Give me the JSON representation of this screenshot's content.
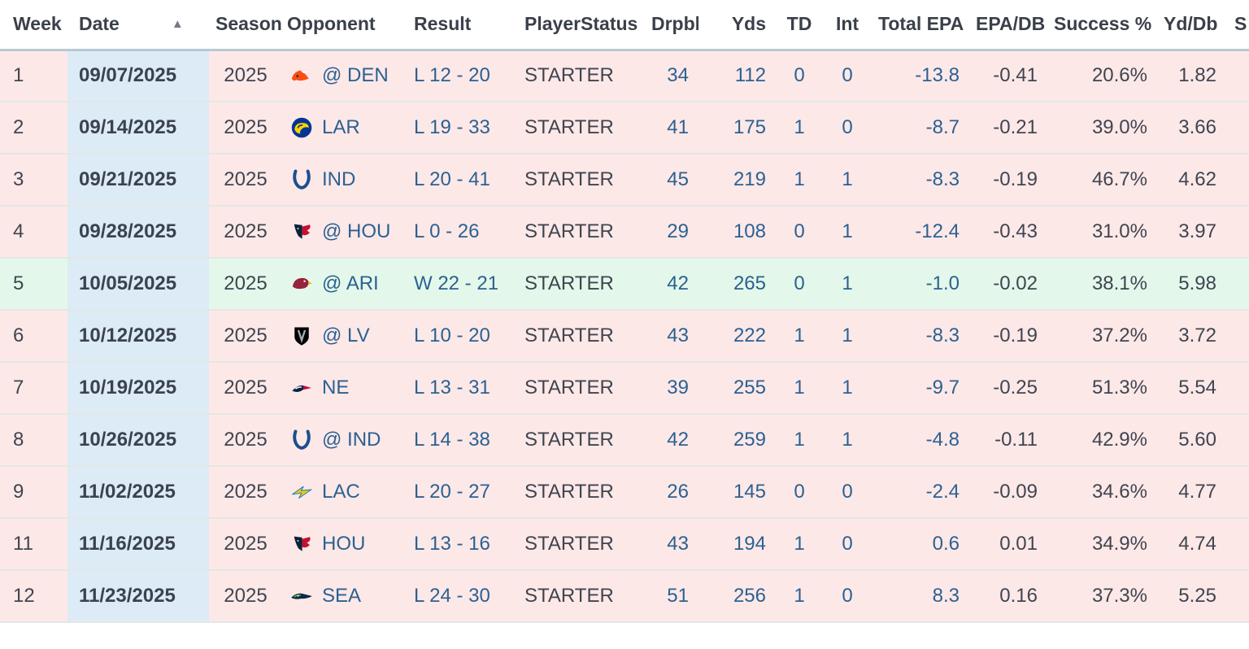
{
  "colors": {
    "loss_row_bg": "#fde8e8",
    "win_row_bg": "#e3f8ea",
    "sorted_column_bg": "#dcebf5",
    "link_blue": "#2b6191",
    "text_dark": "#3f4550",
    "header_border": "#b7c9d3",
    "row_border": "#e3e7e6"
  },
  "table": {
    "sort_icon": "▲",
    "columns": [
      {
        "key": "week",
        "label": "Week"
      },
      {
        "key": "date",
        "label": "Date",
        "sorted": "asc"
      },
      {
        "key": "season",
        "label": "Season"
      },
      {
        "key": "opponent",
        "label": "Opponent"
      },
      {
        "key": "result",
        "label": "Result"
      },
      {
        "key": "status",
        "label": "PlayerStatus"
      },
      {
        "key": "drpbk",
        "label": "Drpbk"
      },
      {
        "key": "yds",
        "label": "Yds"
      },
      {
        "key": "td",
        "label": "TD"
      },
      {
        "key": "int",
        "label": "Int"
      },
      {
        "key": "total_epa",
        "label": "Total EPA"
      },
      {
        "key": "epa_db",
        "label": "EPA/DB"
      },
      {
        "key": "success_pct",
        "label": "Success %"
      },
      {
        "key": "yd_db",
        "label": "Yd/Db"
      },
      {
        "key": "next",
        "label": "S"
      }
    ],
    "rows": [
      {
        "week": "1",
        "date": "09/07/2025",
        "season": "2025",
        "team": "DEN",
        "opponent": "@ DEN",
        "result": "L 12 - 20",
        "status": "STARTER",
        "drpbk": "34",
        "yds": "112",
        "td": "0",
        "int": "0",
        "total_epa": "-13.8",
        "epa_db": "-0.41",
        "success_pct": "20.6%",
        "yd_db": "1.82",
        "outcome": "loss"
      },
      {
        "week": "2",
        "date": "09/14/2025",
        "season": "2025",
        "team": "LAR",
        "opponent": "LAR",
        "result": "L 19 - 33",
        "status": "STARTER",
        "drpbk": "41",
        "yds": "175",
        "td": "1",
        "int": "0",
        "total_epa": "-8.7",
        "epa_db": "-0.21",
        "success_pct": "39.0%",
        "yd_db": "3.66",
        "outcome": "loss"
      },
      {
        "week": "3",
        "date": "09/21/2025",
        "season": "2025",
        "team": "IND",
        "opponent": "IND",
        "result": "L 20 - 41",
        "status": "STARTER",
        "drpbk": "45",
        "yds": "219",
        "td": "1",
        "int": "1",
        "total_epa": "-8.3",
        "epa_db": "-0.19",
        "success_pct": "46.7%",
        "yd_db": "4.62",
        "outcome": "loss"
      },
      {
        "week": "4",
        "date": "09/28/2025",
        "season": "2025",
        "team": "HOU",
        "opponent": "@ HOU",
        "result": "L 0 - 26",
        "status": "STARTER",
        "drpbk": "29",
        "yds": "108",
        "td": "0",
        "int": "1",
        "total_epa": "-12.4",
        "epa_db": "-0.43",
        "success_pct": "31.0%",
        "yd_db": "3.97",
        "outcome": "loss"
      },
      {
        "week": "5",
        "date": "10/05/2025",
        "season": "2025",
        "team": "ARI",
        "opponent": "@ ARI",
        "result": "W 22 - 21",
        "status": "STARTER",
        "drpbk": "42",
        "yds": "265",
        "td": "0",
        "int": "1",
        "total_epa": "-1.0",
        "epa_db": "-0.02",
        "success_pct": "38.1%",
        "yd_db": "5.98",
        "outcome": "win"
      },
      {
        "week": "6",
        "date": "10/12/2025",
        "season": "2025",
        "team": "LV",
        "opponent": "@ LV",
        "result": "L 10 - 20",
        "status": "STARTER",
        "drpbk": "43",
        "yds": "222",
        "td": "1",
        "int": "1",
        "total_epa": "-8.3",
        "epa_db": "-0.19",
        "success_pct": "37.2%",
        "yd_db": "3.72",
        "outcome": "loss"
      },
      {
        "week": "7",
        "date": "10/19/2025",
        "season": "2025",
        "team": "NE",
        "opponent": "NE",
        "result": "L 13 - 31",
        "status": "STARTER",
        "drpbk": "39",
        "yds": "255",
        "td": "1",
        "int": "1",
        "total_epa": "-9.7",
        "epa_db": "-0.25",
        "success_pct": "51.3%",
        "yd_db": "5.54",
        "outcome": "loss"
      },
      {
        "week": "8",
        "date": "10/26/2025",
        "season": "2025",
        "team": "IND",
        "opponent": "@ IND",
        "result": "L 14 - 38",
        "status": "STARTER",
        "drpbk": "42",
        "yds": "259",
        "td": "1",
        "int": "1",
        "total_epa": "-4.8",
        "epa_db": "-0.11",
        "success_pct": "42.9%",
        "yd_db": "5.60",
        "outcome": "loss"
      },
      {
        "week": "9",
        "date": "11/02/2025",
        "season": "2025",
        "team": "LAC",
        "opponent": "LAC",
        "result": "L 20 - 27",
        "status": "STARTER",
        "drpbk": "26",
        "yds": "145",
        "td": "0",
        "int": "0",
        "total_epa": "-2.4",
        "epa_db": "-0.09",
        "success_pct": "34.6%",
        "yd_db": "4.77",
        "outcome": "loss"
      },
      {
        "week": "11",
        "date": "11/16/2025",
        "season": "2025",
        "team": "HOU",
        "opponent": "HOU",
        "result": "L 13 - 16",
        "status": "STARTER",
        "drpbk": "43",
        "yds": "194",
        "td": "1",
        "int": "0",
        "total_epa": "0.6",
        "epa_db": "0.01",
        "success_pct": "34.9%",
        "yd_db": "4.74",
        "outcome": "loss"
      },
      {
        "week": "12",
        "date": "11/23/2025",
        "season": "2025",
        "team": "SEA",
        "opponent": "SEA",
        "result": "L 24 - 30",
        "status": "STARTER",
        "drpbk": "51",
        "yds": "256",
        "td": "1",
        "int": "0",
        "total_epa": "8.3",
        "epa_db": "0.16",
        "success_pct": "37.3%",
        "yd_db": "5.25",
        "outcome": "loss"
      }
    ]
  }
}
